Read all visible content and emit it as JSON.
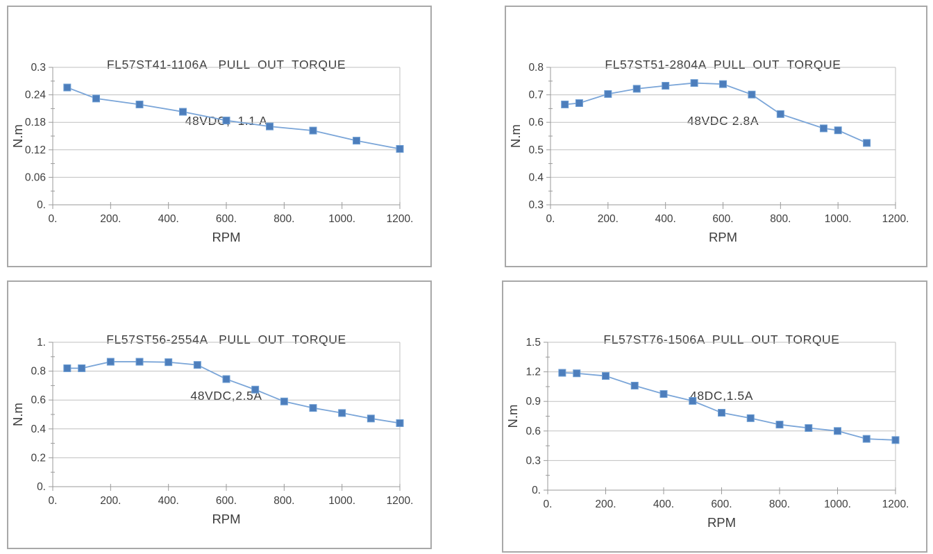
{
  "page": {
    "background": "#ffffff"
  },
  "style": {
    "line_color": "#7aa5d8",
    "marker_color": "#4d7ebc",
    "marker_stroke": "#6f9fd4",
    "grid_color": "#bfbfbf",
    "axis_color": "#9a9a9a",
    "text_color": "#3d3d3d",
    "border_color": "#a8a8a8"
  },
  "chart_data": [
    {
      "type": "line",
      "title": "FL57ST41-1106A   PULL  OUT  TORQUE",
      "subtitle": "48VDC,  1.1 A",
      "xlabel": "RPM",
      "ylabel": "N.m",
      "legend": "none",
      "grid": true,
      "xlim": [
        0,
        1200
      ],
      "ylim": [
        0,
        0.3
      ],
      "x_tick_values": [
        0,
        200,
        400,
        600,
        800,
        1000,
        1200
      ],
      "x_tick_labels": [
        "0.",
        "200.",
        "400.",
        "600.",
        "800.",
        "1000.",
        "1200."
      ],
      "y_tick_values": [
        0,
        0.06,
        0.12,
        0.18,
        0.24,
        0.3
      ],
      "y_tick_labels": [
        "0.",
        "0.06",
        "0.12",
        "0.18",
        "0.24",
        "0.3"
      ],
      "x": [
        50,
        150,
        300,
        450,
        600,
        750,
        900,
        1050,
        1200
      ],
      "values": [
        0.256,
        0.232,
        0.219,
        0.203,
        0.184,
        0.171,
        0.162,
        0.14,
        0.122
      ]
    },
    {
      "type": "line",
      "title": "FL57ST51-2804A  PULL  OUT  TORQUE",
      "subtitle": "48VDC 2.8A",
      "xlabel": "RPM",
      "ylabel": "N.m",
      "legend": "none",
      "grid": true,
      "xlim": [
        0,
        1200
      ],
      "ylim": [
        0.3,
        0.8
      ],
      "x_tick_values": [
        0,
        200,
        400,
        600,
        800,
        1000,
        1200
      ],
      "x_tick_labels": [
        "0.",
        "200.",
        "400.",
        "600.",
        "800.",
        "1000.",
        "1200."
      ],
      "y_tick_values": [
        0.3,
        0.4,
        0.5,
        0.6,
        0.7,
        0.8
      ],
      "y_tick_labels": [
        "0.3",
        "0.4",
        "0.5",
        "0.6",
        "0.7",
        "0.8"
      ],
      "x": [
        50,
        100,
        200,
        300,
        400,
        500,
        600,
        700,
        800,
        950,
        1000,
        1100
      ],
      "values": [
        0.665,
        0.67,
        0.703,
        0.722,
        0.733,
        0.743,
        0.739,
        0.701,
        0.63,
        0.578,
        0.571,
        0.525
      ]
    },
    {
      "type": "line",
      "title": "FL57ST56-2554A   PULL  OUT  TORQUE",
      "subtitle": "48VDC,2.5A",
      "xlabel": "RPM",
      "ylabel": "N.m",
      "legend": "none",
      "grid": true,
      "xlim": [
        0,
        1200
      ],
      "ylim": [
        0,
        1
      ],
      "x_tick_values": [
        0,
        200,
        400,
        600,
        800,
        1000,
        1200
      ],
      "x_tick_labels": [
        "0.",
        "200.",
        "400.",
        "600.",
        "800.",
        "1000.",
        "1200."
      ],
      "y_tick_values": [
        0,
        0.2,
        0.4,
        0.6,
        0.8,
        1
      ],
      "y_tick_labels": [
        "0.",
        "0.2",
        "0.4",
        "0.6",
        "0.8",
        "1."
      ],
      "x": [
        50,
        100,
        200,
        300,
        400,
        500,
        600,
        700,
        800,
        900,
        1000,
        1100,
        1200
      ],
      "values": [
        0.82,
        0.82,
        0.865,
        0.865,
        0.862,
        0.843,
        0.745,
        0.672,
        0.59,
        0.545,
        0.51,
        0.472,
        0.44
      ]
    },
    {
      "type": "line",
      "title": "FL57ST76-1506A  PULL  OUT  TORQUE",
      "subtitle": "48DC,1.5A",
      "xlabel": "RPM",
      "ylabel": "N.m",
      "legend": "none",
      "grid": true,
      "xlim": [
        0,
        1200
      ],
      "ylim": [
        0,
        1.5
      ],
      "x_tick_values": [
        0,
        200,
        400,
        600,
        800,
        1000,
        1200
      ],
      "x_tick_labels": [
        "0.",
        "200.",
        "400.",
        "600.",
        "800.",
        "1000.",
        "1200."
      ],
      "y_tick_values": [
        0,
        0.3,
        0.6,
        0.9,
        1.2,
        1.5
      ],
      "y_tick_labels": [
        "0.",
        "0.3",
        "0.6",
        "0.9",
        "1.2",
        "1.5"
      ],
      "x": [
        50,
        100,
        200,
        300,
        400,
        500,
        600,
        700,
        800,
        900,
        1000,
        1100,
        1200
      ],
      "values": [
        1.19,
        1.185,
        1.158,
        1.06,
        0.975,
        0.905,
        0.785,
        0.73,
        0.665,
        0.63,
        0.6,
        0.52,
        0.508
      ]
    }
  ]
}
